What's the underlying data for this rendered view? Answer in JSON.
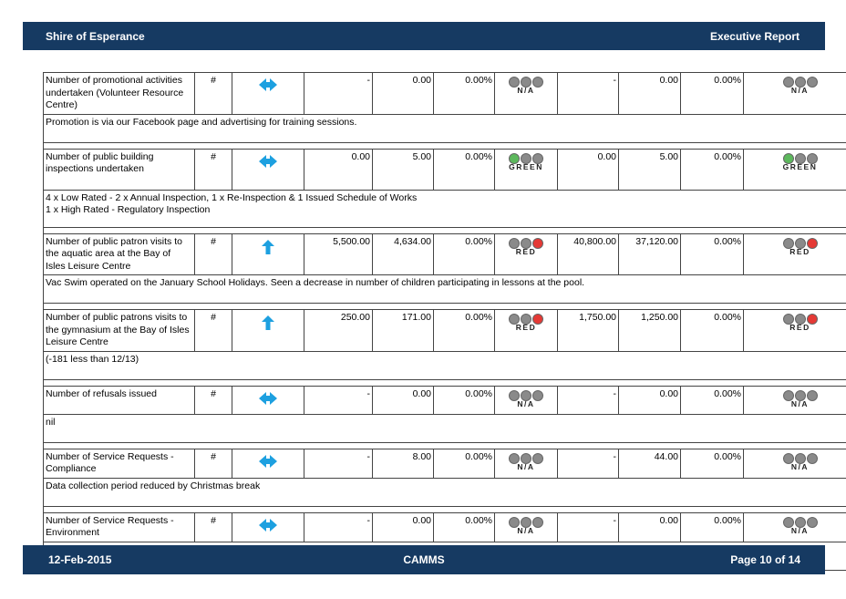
{
  "header": {
    "left": "Shire of Esperance",
    "right": "Executive Report"
  },
  "footer": {
    "date": "12-Feb-2015",
    "center": "CAMMS",
    "page": "Page 10 of 14"
  },
  "colors": {
    "bar": "#163a62",
    "arrow": "#1da0e0",
    "green": "#5cb85c",
    "red": "#e53935",
    "off": "#8a8a8a"
  },
  "rows": [
    {
      "measure": "Number of promotional activities undertaken (Volunteer Resource Centre)",
      "unit": "#",
      "trend": "double-arrow-icon",
      "target": "-",
      "actual": "0.00",
      "pct": "0.00%",
      "status": "N/A",
      "ytd_target": "-",
      "ytd_actual": "0.00",
      "ytd_pct": "0.00%",
      "ytd_status": "N/A",
      "comment": "Promotion is via our Facebook page and advertising for training sessions."
    },
    {
      "measure": "Number of public building inspections undertaken",
      "unit": "#",
      "trend": "double-arrow-icon",
      "target": "0.00",
      "actual": "5.00",
      "pct": "0.00%",
      "status": "GREEN",
      "ytd_target": "0.00",
      "ytd_actual": "5.00",
      "ytd_pct": "0.00%",
      "ytd_status": "GREEN",
      "comment": "4 x Low Rated - 2 x Annual Inspection,  1 x Re-Inspection & 1 Issued Schedule of Works\n1 x High Rated - Regulatory Inspection"
    },
    {
      "measure": "Number of public patron visits to the aquatic area at the Bay of Isles Leisure Centre",
      "unit": "#",
      "trend": "up-arrow-icon",
      "target": "5,500.00",
      "actual": "4,634.00",
      "pct": "0.00%",
      "status": "RED",
      "ytd_target": "40,800.00",
      "ytd_actual": "37,120.00",
      "ytd_pct": "0.00%",
      "ytd_status": "RED",
      "comment": "Vac Swim operated on the January School Holidays. Seen a decrease in number of children participating in lessons at the pool."
    },
    {
      "measure": "Number of public patrons visits to the gymnasium at the Bay of Isles Leisure Centre",
      "unit": "#",
      "trend": "up-arrow-icon",
      "target": "250.00",
      "actual": "171.00",
      "pct": "0.00%",
      "status": "RED",
      "ytd_target": "1,750.00",
      "ytd_actual": "1,250.00",
      "ytd_pct": "0.00%",
      "ytd_status": "RED",
      "comment": "(-181 less than 12/13)"
    },
    {
      "measure": "Number of refusals issued",
      "unit": "#",
      "trend": "double-arrow-icon",
      "target": "-",
      "actual": "0.00",
      "pct": "0.00%",
      "status": "N/A",
      "ytd_target": "-",
      "ytd_actual": "0.00",
      "ytd_pct": "0.00%",
      "ytd_status": "N/A",
      "comment": "nil"
    },
    {
      "measure": "Number of Service Requests - Compliance",
      "unit": "#",
      "trend": "double-arrow-icon",
      "target": "-",
      "actual": "8.00",
      "pct": "0.00%",
      "status": "N/A",
      "ytd_target": "-",
      "ytd_actual": "44.00",
      "ytd_pct": "0.00%",
      "ytd_status": "N/A",
      "comment": "Data collection period reduced by Christmas break"
    },
    {
      "measure": "Number of Service Requests - Environment",
      "unit": "#",
      "trend": "double-arrow-icon",
      "target": "-",
      "actual": "0.00",
      "pct": "0.00%",
      "status": "N/A",
      "ytd_target": "-",
      "ytd_actual": "0.00",
      "ytd_pct": "0.00%",
      "ytd_status": "N/A",
      "comment": "None"
    }
  ]
}
